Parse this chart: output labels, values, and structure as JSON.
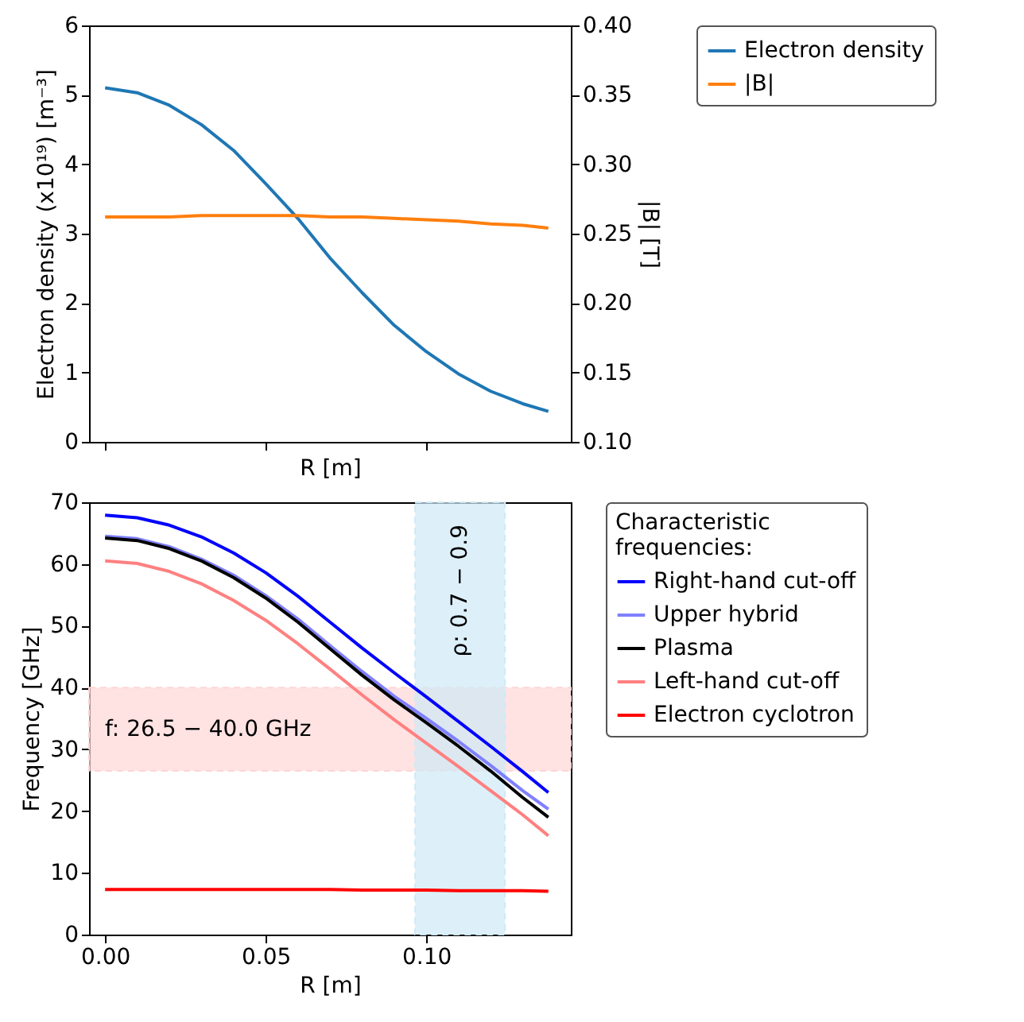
{
  "chart_data": [
    {
      "type": "line",
      "xlabel": "R [m]",
      "ylabel": "Electron density (x10¹⁹) [m⁻³]",
      "y2label": "|B| [T]",
      "x": [
        0,
        0.01,
        0.02,
        0.03,
        0.04,
        0.05,
        0.06,
        0.07,
        0.08,
        0.09,
        0.1,
        0.11,
        0.12,
        0.13,
        0.138
      ],
      "series": [
        {
          "name": "Electron density",
          "color": "#1f77b4",
          "values": [
            5.1,
            5.03,
            4.85,
            4.57,
            4.2,
            3.72,
            3.22,
            2.65,
            2.15,
            1.68,
            1.3,
            0.98,
            0.73,
            0.55,
            0.44
          ]
        },
        {
          "name": "|B|",
          "color": "#ff7f0e",
          "axis": "y2",
          "values": [
            0.262,
            0.262,
            0.262,
            0.263,
            0.263,
            0.263,
            0.263,
            0.262,
            0.262,
            0.261,
            0.26,
            0.259,
            0.257,
            0.256,
            0.254
          ]
        }
      ],
      "xlim": [
        -0.005,
        0.145
      ],
      "xticks": [
        {
          "value": 0,
          "label": null
        },
        {
          "value": 0.05,
          "label": null
        },
        {
          "value": 0.1,
          "label": null
        }
      ],
      "ylim": [
        0,
        6
      ],
      "yticks": [
        0,
        1,
        2,
        3,
        4,
        5,
        6
      ],
      "y2lim": [
        0.1,
        0.4
      ],
      "y2ticks": [
        {
          "value": 0.1,
          "label": "0.10"
        },
        {
          "value": 0.15,
          "label": "0.15"
        },
        {
          "value": 0.2,
          "label": "0.20"
        },
        {
          "value": 0.25,
          "label": "0.25"
        },
        {
          "value": 0.3,
          "label": "0.30"
        },
        {
          "value": 0.35,
          "label": "0.35"
        },
        {
          "value": 0.4,
          "label": "0.40"
        }
      ],
      "tick_labels": "y",
      "legend": "right",
      "grid": false
    },
    {
      "type": "line",
      "xlabel": "R [m]",
      "ylabel": "Frequency [GHz]",
      "legend_title": "Characteristic frequencies:",
      "x": [
        0,
        0.01,
        0.02,
        0.03,
        0.04,
        0.05,
        0.06,
        0.07,
        0.08,
        0.09,
        0.1,
        0.11,
        0.12,
        0.13,
        0.138
      ],
      "series": [
        {
          "name": "Right-hand cut-off",
          "color": "#0000ff",
          "values": [
            67.9,
            67.5,
            66.3,
            64.4,
            61.8,
            58.6,
            54.8,
            50.6,
            46.4,
            42.4,
            38.5,
            34.5,
            30.5,
            26.4,
            23.0
          ]
        },
        {
          "name": "Upper hybrid",
          "color": "#8080ff",
          "values": [
            64.5,
            64.1,
            62.8,
            60.8,
            58.2,
            54.9,
            51.1,
            46.8,
            42.6,
            38.6,
            35.0,
            31.3,
            27.4,
            23.3,
            20.3
          ]
        },
        {
          "name": "Plasma",
          "color": "#000000",
          "values": [
            64.2,
            63.8,
            62.5,
            60.5,
            57.8,
            54.5,
            50.6,
            46.3,
            42.0,
            38.0,
            34.3,
            30.5,
            26.5,
            22.2,
            19.0
          ]
        },
        {
          "name": "Left-hand cut-off",
          "color": "#ff8080",
          "values": [
            60.5,
            60.1,
            58.8,
            56.8,
            54.1,
            50.9,
            47.1,
            43.0,
            38.8,
            34.8,
            31.0,
            27.2,
            23.3,
            19.4,
            16.0
          ]
        },
        {
          "name": "Electron cyclotron",
          "color": "#ff0000",
          "values": [
            7.3,
            7.3,
            7.3,
            7.3,
            7.3,
            7.3,
            7.3,
            7.3,
            7.2,
            7.2,
            7.2,
            7.1,
            7.1,
            7.1,
            7.0
          ]
        }
      ],
      "bands": [
        {
          "axis": "y",
          "from": 26.5,
          "to": 40,
          "label": "f: 26.5 − 40.0 GHz",
          "color": "#ffd5d5"
        },
        {
          "axis": "x",
          "from": 0.0965,
          "to": 0.1245,
          "label": "ρ: 0.7 − 0.9",
          "color": "#cfe9f7"
        }
      ],
      "xlim": [
        -0.005,
        0.145
      ],
      "xticks": [
        {
          "value": 0,
          "label": "0.00"
        },
        {
          "value": 0.05,
          "label": "0.05"
        },
        {
          "value": 0.1,
          "label": "0.10"
        }
      ],
      "ylim": [
        0,
        70
      ],
      "yticks": [
        0,
        10,
        20,
        30,
        40,
        50,
        60,
        70
      ],
      "legend": "right",
      "grid": false
    }
  ]
}
